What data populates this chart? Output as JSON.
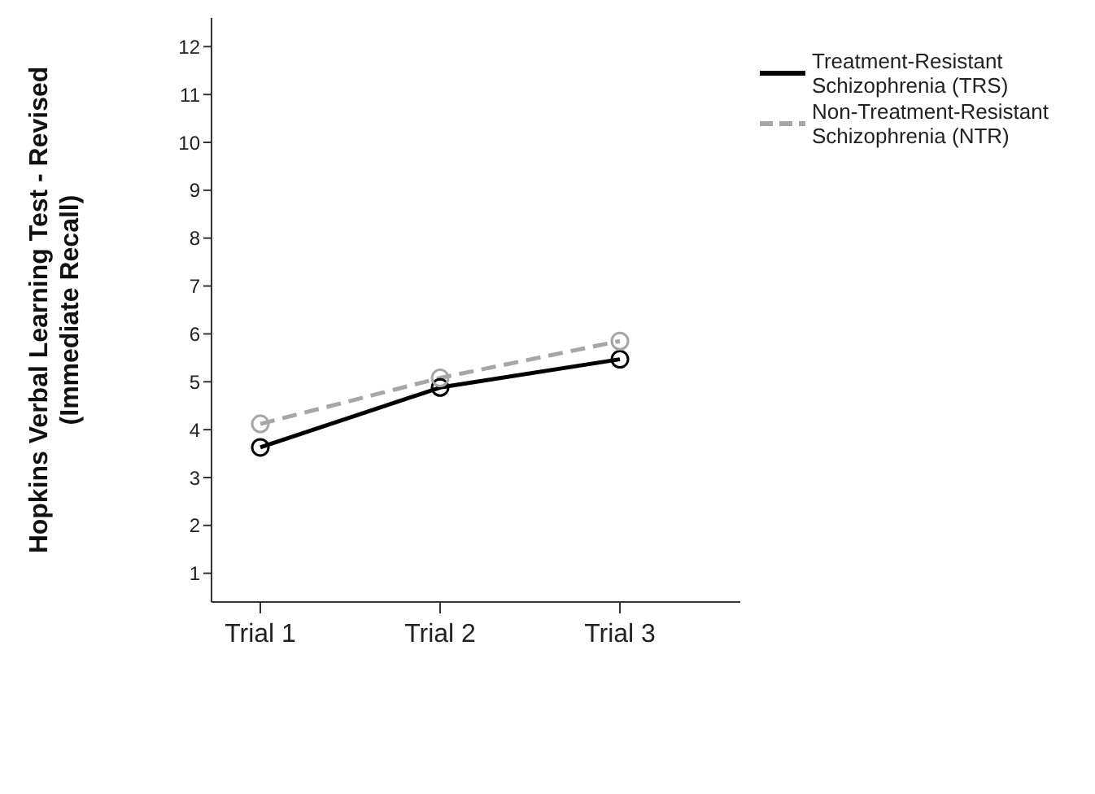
{
  "chart_data": {
    "type": "line",
    "ylabel": "Hopkins Verbal Learning Test - Revised (Immediate Recall)",
    "categories": [
      "Trial 1",
      "Trial 2",
      "Trial 3"
    ],
    "series": [
      {
        "name": "Treatment-Resistant Schizophrenia (TRS)",
        "color": "#000000",
        "line_style": "solid",
        "values": [
          3.63,
          4.88,
          5.47
        ]
      },
      {
        "name": "Non-Treatment-Resistant Schizophrenia (NTR)",
        "color": "#a6a6a6",
        "line_style": "dashed",
        "values": [
          4.12,
          5.08,
          5.85
        ]
      }
    ],
    "ylim": [
      0.4,
      12.6
    ],
    "yticks": [
      1,
      2,
      3,
      4,
      5,
      6,
      7,
      8,
      9,
      10,
      11,
      12
    ],
    "marker": "circle",
    "grid": false,
    "legend": "top right"
  }
}
